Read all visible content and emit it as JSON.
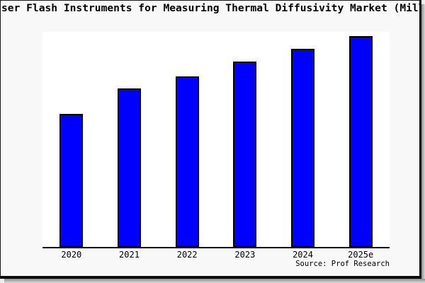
{
  "chart_data": {
    "type": "bar",
    "title": "ser Flash Instruments for Measuring Thermal Diffusivity Market (Mill",
    "categories": [
      "2020",
      "2021",
      "2022",
      "2023",
      "2024",
      "2025e"
    ],
    "values": [
      63,
      75,
      81,
      88,
      94,
      100
    ],
    "value_note": "No y-axis ticks or data labels visible; values are relative bar heights estimated from pixels with 2025e = 100",
    "ylim": [
      0,
      102
    ],
    "xlabel": "",
    "ylabel": "",
    "grid": false,
    "legend": false,
    "bar_color": "#0000ff",
    "bar_border_color": "#000000",
    "source": "Source: Prof Research"
  },
  "colors": {
    "canvas_background": "#f8f8f8",
    "plot_background": "#ffffff",
    "axis_line": "#000000",
    "frame": "#0d0d0d",
    "shadow": "#8e8e8e",
    "text": "#000000"
  }
}
